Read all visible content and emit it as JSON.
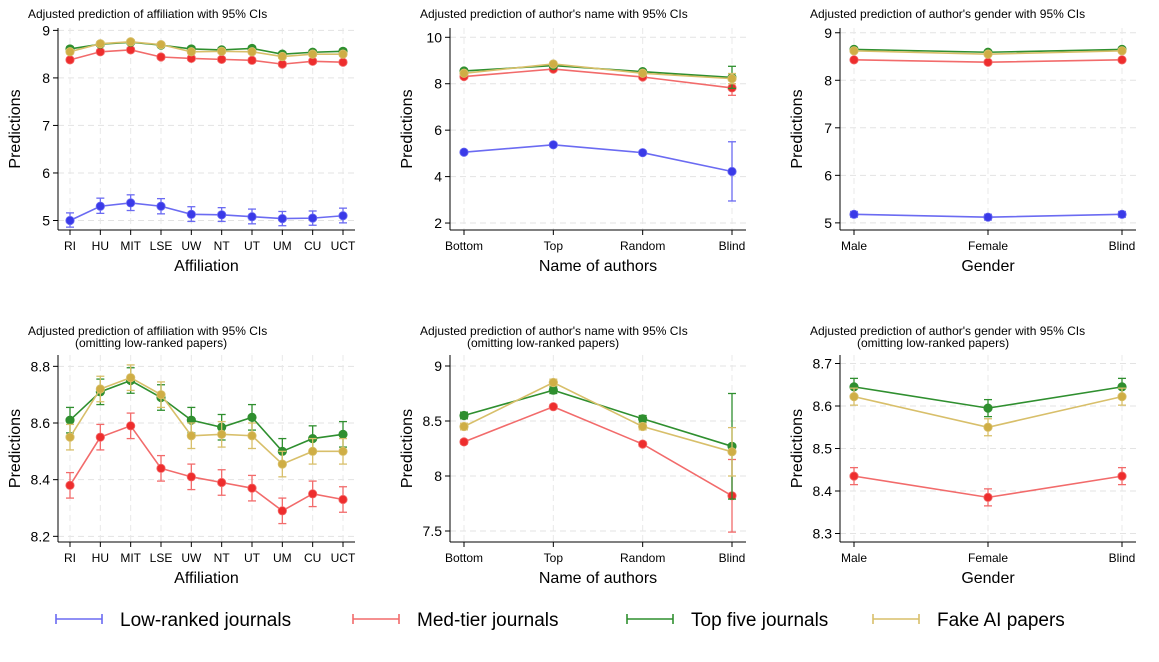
{
  "chart_data": [
    {
      "type": "line",
      "title": "Adjusted prediction of affiliation with 95% CIs",
      "subtitle": "",
      "xlabel": "Affiliation",
      "ylabel": "Predictions",
      "categories": [
        "RI",
        "HU",
        "MIT",
        "LSE",
        "UW",
        "NT",
        "UT",
        "UM",
        "CU",
        "UCT"
      ],
      "ylim": [
        4.8,
        9.05
      ],
      "yticks": [
        5,
        6,
        7,
        8,
        9
      ],
      "ytick_labels": [
        "5",
        "6",
        "7",
        "8",
        "9"
      ],
      "grid": true,
      "series": [
        {
          "name": "Low-ranked journals",
          "values": [
            5.0,
            5.3,
            5.37,
            5.3,
            5.13,
            5.12,
            5.08,
            5.04,
            5.05,
            5.1
          ],
          "ci": [
            [
              4.86,
              5.16
            ],
            [
              5.15,
              5.47
            ],
            [
              5.21,
              5.54
            ],
            [
              5.14,
              5.46
            ],
            [
              4.98,
              5.29
            ],
            [
              4.98,
              5.27
            ],
            [
              4.93,
              5.24
            ],
            [
              4.89,
              5.19
            ],
            [
              4.9,
              5.2
            ],
            [
              4.95,
              5.26
            ]
          ]
        },
        {
          "name": "Med-tier journals",
          "values": [
            8.38,
            8.55,
            8.59,
            8.44,
            8.41,
            8.39,
            8.37,
            8.29,
            8.35,
            8.33
          ],
          "ci": [
            [
              8.34,
              8.42
            ],
            [
              8.51,
              8.59
            ],
            [
              8.55,
              8.63
            ],
            [
              8.4,
              8.48
            ],
            [
              8.37,
              8.45
            ],
            [
              8.35,
              8.43
            ],
            [
              8.33,
              8.41
            ],
            [
              8.25,
              8.33
            ],
            [
              8.31,
              8.39
            ],
            [
              8.29,
              8.37
            ]
          ]
        },
        {
          "name": "Top five journals",
          "values": [
            8.61,
            8.71,
            8.75,
            8.69,
            8.61,
            8.59,
            8.62,
            8.5,
            8.54,
            8.56
          ],
          "ci": [
            [
              8.57,
              8.65
            ],
            [
              8.67,
              8.75
            ],
            [
              8.71,
              8.79
            ],
            [
              8.65,
              8.73
            ],
            [
              8.57,
              8.65
            ],
            [
              8.55,
              8.63
            ],
            [
              8.58,
              8.66
            ],
            [
              8.46,
              8.54
            ],
            [
              8.5,
              8.58
            ],
            [
              8.52,
              8.6
            ]
          ]
        },
        {
          "name": "Fake AI papers",
          "values": [
            8.55,
            8.72,
            8.76,
            8.7,
            8.55,
            8.56,
            8.55,
            8.45,
            8.5,
            8.5
          ],
          "ci": [
            [
              8.51,
              8.59
            ],
            [
              8.68,
              8.76
            ],
            [
              8.72,
              8.8
            ],
            [
              8.66,
              8.74
            ],
            [
              8.51,
              8.59
            ],
            [
              8.52,
              8.6
            ],
            [
              8.51,
              8.59
            ],
            [
              8.41,
              8.49
            ],
            [
              8.46,
              8.54
            ],
            [
              8.46,
              8.54
            ]
          ]
        }
      ]
    },
    {
      "type": "line",
      "title": "Adjusted prediction of author's name with 95% CIs",
      "subtitle": "",
      "xlabel": "Name of authors",
      "ylabel": "Predictions",
      "categories": [
        "Bottom",
        "Top",
        "Random",
        "Blind"
      ],
      "ylim": [
        1.7,
        10.4
      ],
      "yticks": [
        2,
        4,
        6,
        8,
        10
      ],
      "ytick_labels": [
        "2",
        "4",
        "6",
        "8",
        "10"
      ],
      "grid": true,
      "series": [
        {
          "name": "Low-ranked journals",
          "values": [
            5.05,
            5.37,
            5.03,
            4.22
          ],
          "ci": [
            [
              4.98,
              5.12
            ],
            [
              5.3,
              5.44
            ],
            [
              4.96,
              5.1
            ],
            [
              2.95,
              5.5
            ]
          ]
        },
        {
          "name": "Med-tier journals",
          "values": [
            8.31,
            8.63,
            8.29,
            7.82
          ],
          "ci": [
            [
              8.24,
              8.38
            ],
            [
              8.56,
              8.7
            ],
            [
              8.22,
              8.36
            ],
            [
              7.5,
              8.14
            ]
          ]
        },
        {
          "name": "Top five journals",
          "values": [
            8.55,
            8.78,
            8.52,
            8.27
          ],
          "ci": [
            [
              8.48,
              8.62
            ],
            [
              8.71,
              8.85
            ],
            [
              8.45,
              8.59
            ],
            [
              7.8,
              8.75
            ]
          ]
        },
        {
          "name": "Fake AI papers",
          "values": [
            8.45,
            8.85,
            8.45,
            8.22
          ],
          "ci": [
            [
              8.38,
              8.52
            ],
            [
              8.78,
              8.92
            ],
            [
              8.38,
              8.52
            ],
            [
              8.0,
              8.44
            ]
          ]
        }
      ]
    },
    {
      "type": "line",
      "title": "Adjusted prediction of author's gender with 95% CIs",
      "subtitle": "",
      "xlabel": "Gender",
      "ylabel": "Predictions",
      "categories": [
        "Male",
        "Female",
        "Blind"
      ],
      "ylim": [
        4.85,
        9.1
      ],
      "yticks": [
        5,
        6,
        7,
        8,
        9
      ],
      "ytick_labels": [
        "5",
        "6",
        "7",
        "8",
        "9"
      ],
      "grid": true,
      "series": [
        {
          "name": "Low-ranked journals",
          "values": [
            5.18,
            5.12,
            5.18
          ],
          "ci": [
            [
              5.12,
              5.24
            ],
            [
              5.06,
              5.18
            ],
            [
              5.12,
              5.24
            ]
          ]
        },
        {
          "name": "Med-tier journals",
          "values": [
            8.43,
            8.38,
            8.43
          ],
          "ci": [
            [
              8.41,
              8.45
            ],
            [
              8.36,
              8.4
            ],
            [
              8.41,
              8.45
            ]
          ]
        },
        {
          "name": "Top five journals",
          "values": [
            8.65,
            8.59,
            8.65
          ],
          "ci": [
            [
              8.63,
              8.67
            ],
            [
              8.57,
              8.61
            ],
            [
              8.63,
              8.67
            ]
          ]
        },
        {
          "name": "Fake AI papers",
          "values": [
            8.62,
            8.55,
            8.62
          ],
          "ci": [
            [
              8.6,
              8.64
            ],
            [
              8.53,
              8.57
            ],
            [
              8.6,
              8.64
            ]
          ]
        }
      ]
    },
    {
      "type": "line",
      "title": "Adjusted prediction of affiliation with 95% CIs",
      "subtitle": "(omitting low-ranked papers)",
      "xlabel": "Affiliation",
      "ylabel": "Predictions",
      "categories": [
        "RI",
        "HU",
        "MIT",
        "LSE",
        "UW",
        "NT",
        "UT",
        "UM",
        "CU",
        "UCT"
      ],
      "ylim": [
        8.18,
        8.84
      ],
      "yticks": [
        8.2,
        8.4,
        8.6,
        8.8
      ],
      "ytick_labels": [
        "8.2",
        "8.4",
        "8.6",
        "8.8"
      ],
      "grid": true,
      "series": [
        {
          "name": "Med-tier journals",
          "values": [
            8.38,
            8.55,
            8.59,
            8.44,
            8.41,
            8.39,
            8.37,
            8.29,
            8.35,
            8.33
          ],
          "ci": [
            [
              8.335,
              8.425
            ],
            [
              8.505,
              8.595
            ],
            [
              8.545,
              8.635
            ],
            [
              8.395,
              8.485
            ],
            [
              8.365,
              8.455
            ],
            [
              8.345,
              8.435
            ],
            [
              8.325,
              8.415
            ],
            [
              8.245,
              8.335
            ],
            [
              8.305,
              8.395
            ],
            [
              8.285,
              8.375
            ]
          ]
        },
        {
          "name": "Top five journals",
          "values": [
            8.61,
            8.71,
            8.75,
            8.69,
            8.61,
            8.585,
            8.62,
            8.5,
            8.545,
            8.56
          ],
          "ci": [
            [
              8.565,
              8.655
            ],
            [
              8.665,
              8.755
            ],
            [
              8.705,
              8.795
            ],
            [
              8.645,
              8.735
            ],
            [
              8.565,
              8.655
            ],
            [
              8.54,
              8.63
            ],
            [
              8.575,
              8.665
            ],
            [
              8.455,
              8.545
            ],
            [
              8.5,
              8.59
            ],
            [
              8.515,
              8.605
            ]
          ]
        },
        {
          "name": "Fake AI papers",
          "values": [
            8.55,
            8.72,
            8.76,
            8.7,
            8.555,
            8.56,
            8.555,
            8.455,
            8.5,
            8.5
          ],
          "ci": [
            [
              8.505,
              8.595
            ],
            [
              8.675,
              8.765
            ],
            [
              8.715,
              8.805
            ],
            [
              8.655,
              8.745
            ],
            [
              8.51,
              8.6
            ],
            [
              8.515,
              8.605
            ],
            [
              8.51,
              8.6
            ],
            [
              8.41,
              8.5
            ],
            [
              8.455,
              8.545
            ],
            [
              8.455,
              8.545
            ]
          ]
        }
      ]
    },
    {
      "type": "line",
      "title": "Adjusted prediction of author's name with 95% CIs",
      "subtitle": "(omitting low-ranked papers)",
      "xlabel": "Name of authors",
      "ylabel": "Predictions",
      "categories": [
        "Bottom",
        "Top",
        "Random",
        "Blind"
      ],
      "ylim": [
        7.4,
        9.1
      ],
      "yticks": [
        7.5,
        8,
        8.5,
        9
      ],
      "ytick_labels": [
        "7.5",
        "8",
        "8.5",
        "9"
      ],
      "grid": true,
      "series": [
        {
          "name": "Med-tier journals",
          "values": [
            8.31,
            8.63,
            8.29,
            7.82
          ],
          "ci": [
            [
              8.29,
              8.33
            ],
            [
              8.61,
              8.65
            ],
            [
              8.27,
              8.31
            ],
            [
              7.49,
              8.15
            ]
          ]
        },
        {
          "name": "Top five journals",
          "values": [
            8.55,
            8.78,
            8.52,
            8.27
          ],
          "ci": [
            [
              8.52,
              8.58
            ],
            [
              8.75,
              8.81
            ],
            [
              8.49,
              8.55
            ],
            [
              7.79,
              8.75
            ]
          ]
        },
        {
          "name": "Fake AI papers",
          "values": [
            8.45,
            8.85,
            8.45,
            8.22
          ],
          "ci": [
            [
              8.42,
              8.48
            ],
            [
              8.82,
              8.88
            ],
            [
              8.42,
              8.48
            ],
            [
              8.0,
              8.44
            ]
          ]
        }
      ]
    },
    {
      "type": "line",
      "title": "Adjusted prediction of author's gender with 95% CIs",
      "subtitle": "(omitting low-ranked papers)",
      "xlabel": "Gender",
      "ylabel": "Predictions",
      "categories": [
        "Male",
        "Female",
        "Blind"
      ],
      "ylim": [
        8.28,
        8.72
      ],
      "yticks": [
        8.3,
        8.4,
        8.5,
        8.6,
        8.7
      ],
      "ytick_labels": [
        "8.3",
        "8.4",
        "8.5",
        "8.6",
        "8.7"
      ],
      "grid": true,
      "series": [
        {
          "name": "Med-tier journals",
          "values": [
            8.435,
            8.385,
            8.435
          ],
          "ci": [
            [
              8.415,
              8.455
            ],
            [
              8.365,
              8.405
            ],
            [
              8.415,
              8.455
            ]
          ]
        },
        {
          "name": "Top five journals",
          "values": [
            8.645,
            8.595,
            8.645
          ],
          "ci": [
            [
              8.625,
              8.665
            ],
            [
              8.575,
              8.615
            ],
            [
              8.625,
              8.665
            ]
          ]
        },
        {
          "name": "Fake AI papers",
          "values": [
            8.622,
            8.55,
            8.622
          ],
          "ci": [
            [
              8.602,
              8.642
            ],
            [
              8.53,
              8.57
            ],
            [
              8.602,
              8.642
            ]
          ]
        }
      ]
    }
  ],
  "legend": {
    "placement": "bottom",
    "items": [
      {
        "label": "Low-ranked journals",
        "color": "#6b6bf2"
      },
      {
        "label": "Med-tier journals",
        "color": "#f26b6b"
      },
      {
        "label": "Top five journals",
        "color": "#2f8f2f"
      },
      {
        "label": "Fake AI papers",
        "color": "#d8bf6a"
      }
    ]
  },
  "colors": {
    "Low-ranked journals": "#6b6bf2",
    "Med-tier journals": "#f26b6b",
    "Top five journals": "#2f8f2f",
    "Fake AI papers": "#d8bf6a"
  },
  "marker_colors": {
    "Low-ranked journals": "#3a3ae8",
    "Med-tier journals": "#ee2d2d",
    "Top five journals": "#2f8f2f",
    "Fake AI papers": "#cfae45"
  }
}
